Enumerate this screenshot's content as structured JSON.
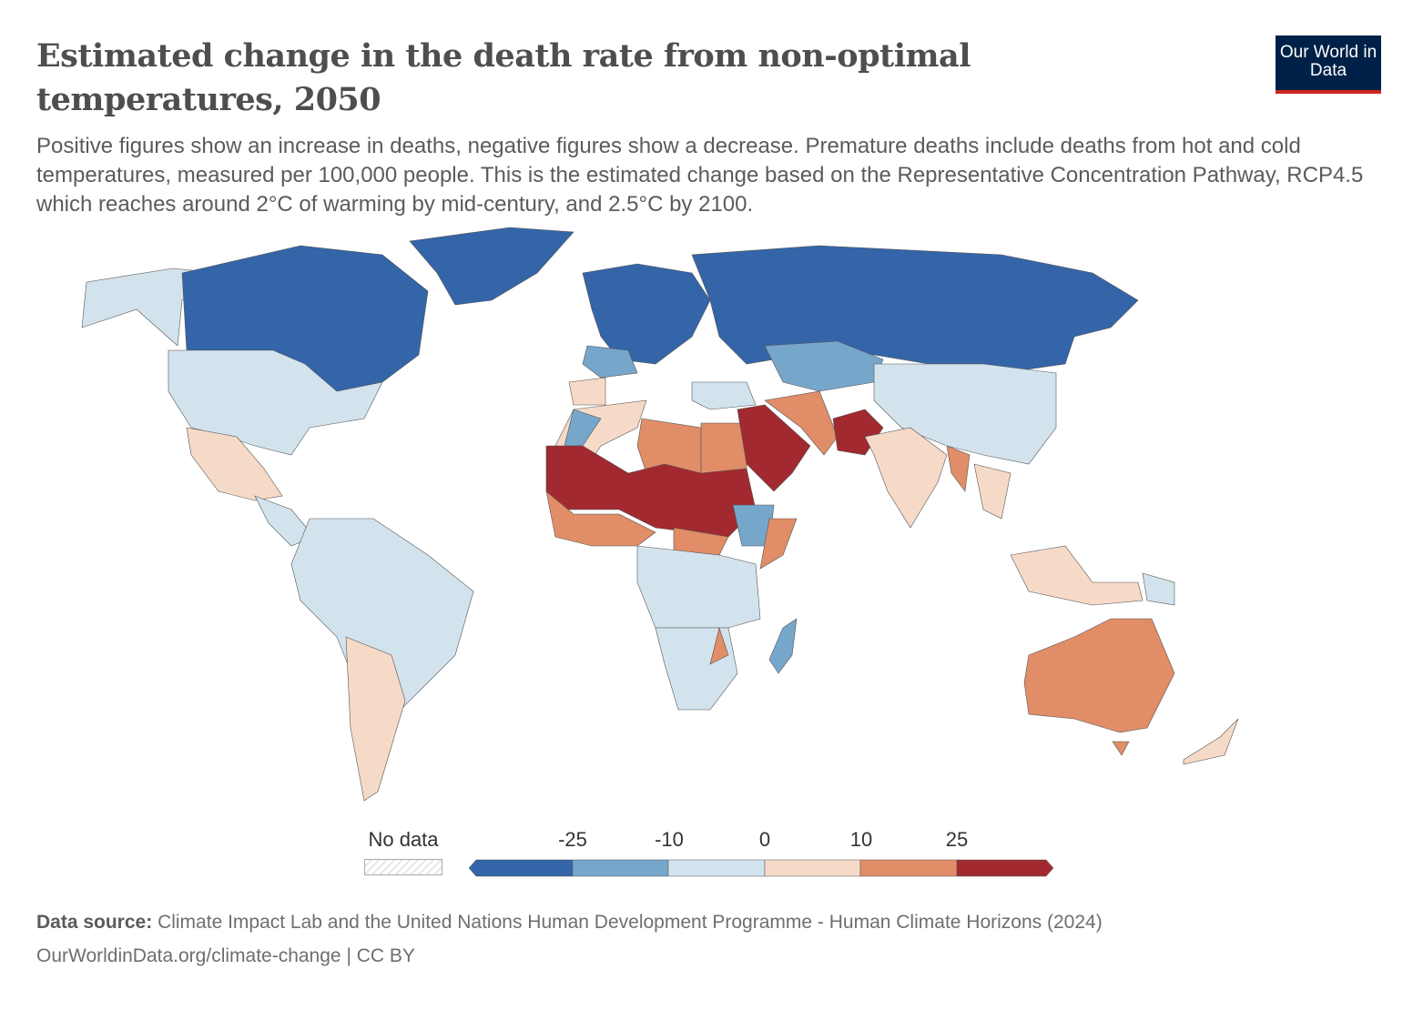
{
  "header": {
    "title": "Estimated change in the death rate from non-optimal temperatures, 2050",
    "subtitle": "Positive figures show an increase in deaths, negative figures show a decrease. Premature deaths include deaths from hot and cold temperatures, measured per 100,000 people. This is the estimated change based on the Representative Concentration Pathway, RCP4.5 which reaches around 2°C of warming by mid-century, and 2.5°C by 2100.",
    "logo": "Our World in Data"
  },
  "legend": {
    "no_data_label": "No data",
    "ticks": [
      "-25",
      "-10",
      "0",
      "10",
      "25"
    ],
    "colors": [
      "#3465a8",
      "#77a6cb",
      "#d3e3ee",
      "#f6dac8",
      "#e08d68",
      "#a2292f"
    ],
    "no_data_color": "#e4e4e4"
  },
  "footer": {
    "source_label": "Data source:",
    "source_text": "Climate Impact Lab and the United Nations Human Development Programme - Human Climate Horizons (2024)",
    "url": "OurWorldinData.org/climate-change",
    "license": "| CC BY"
  }
}
